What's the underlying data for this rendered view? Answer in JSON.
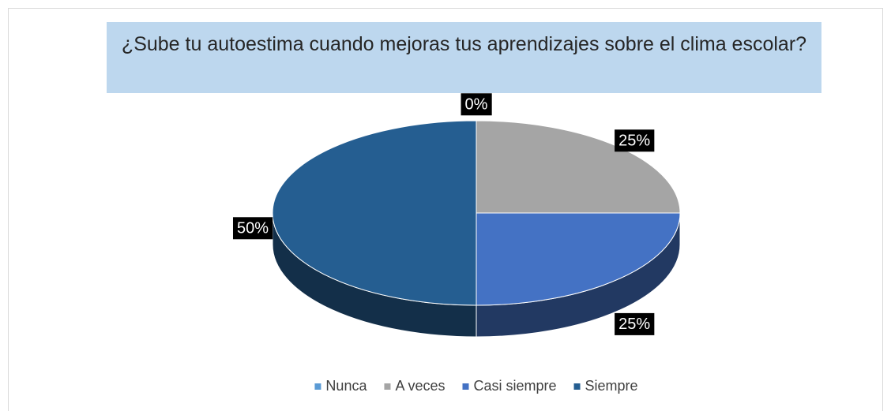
{
  "chart_data": {
    "type": "pie",
    "title": "¿Sube tu autoestima cuando mejoras tus aprendizajes sobre el clima escolar?",
    "categories": [
      "Nunca",
      "A veces",
      "Casi siempre",
      "Siempre"
    ],
    "values": [
      0,
      25,
      25,
      50
    ],
    "value_labels": [
      "0%",
      "25%",
      "25%",
      "50%"
    ],
    "colors": [
      "#5b9bd5",
      "#a5a5a5",
      "#4472c4",
      "#255e91"
    ],
    "legend": "bottom"
  }
}
